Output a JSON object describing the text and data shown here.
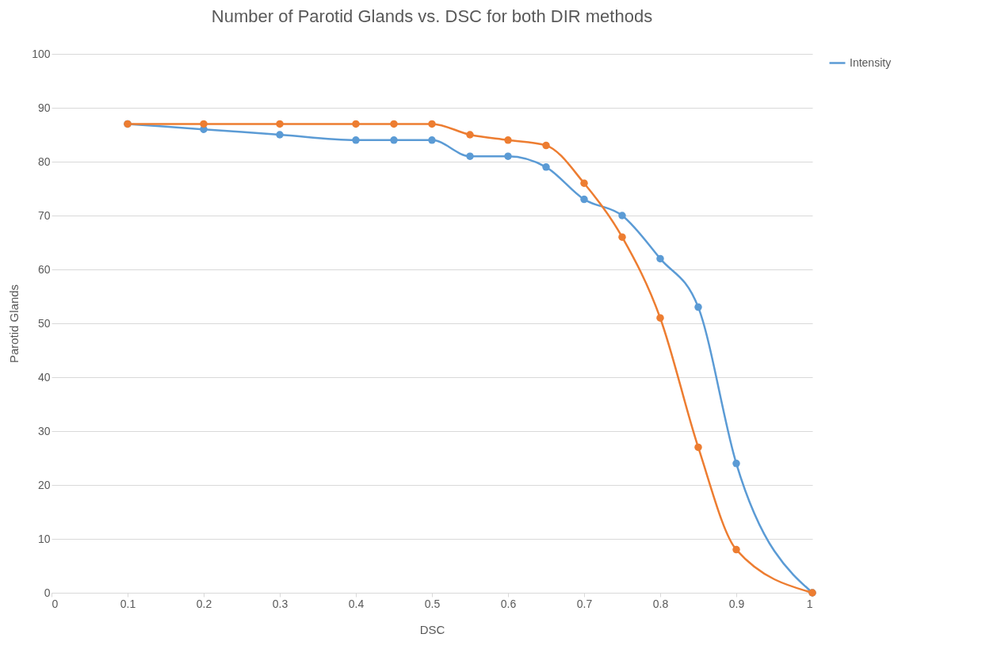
{
  "chart_data": {
    "type": "line",
    "title": "Number of Parotid Glands vs. DSC for both DIR methods",
    "xlabel": "DSC",
    "ylabel": "Parotid Glands",
    "x": [
      0.1,
      0.2,
      0.3,
      0.4,
      0.45,
      0.5,
      0.55,
      0.6,
      0.65,
      0.7,
      0.75,
      0.8,
      0.85,
      0.9,
      1
    ],
    "series": [
      {
        "name": "Intensity",
        "color": "#5b9bd5",
        "values": [
          87,
          86,
          85,
          84,
          84,
          84,
          81,
          81,
          79,
          73,
          70,
          62,
          53,
          24,
          0
        ]
      },
      {
        "color": "#ed7d31",
        "values": [
          87,
          87,
          87,
          87,
          87,
          87,
          85,
          84,
          83,
          76,
          66,
          51,
          27,
          8,
          0
        ]
      }
    ],
    "xlim": [
      0,
      1
    ],
    "xticks": [
      0,
      0.1,
      0.2,
      0.3,
      0.4,
      0.5,
      0.6,
      0.7,
      0.8,
      0.9,
      1
    ],
    "ylim": [
      0,
      100
    ],
    "yticks": [
      0,
      10,
      20,
      30,
      40,
      50,
      60,
      70,
      80,
      90,
      100
    ],
    "grid": "y",
    "legend": "right",
    "marker": "circle",
    "line_style": "solid"
  }
}
